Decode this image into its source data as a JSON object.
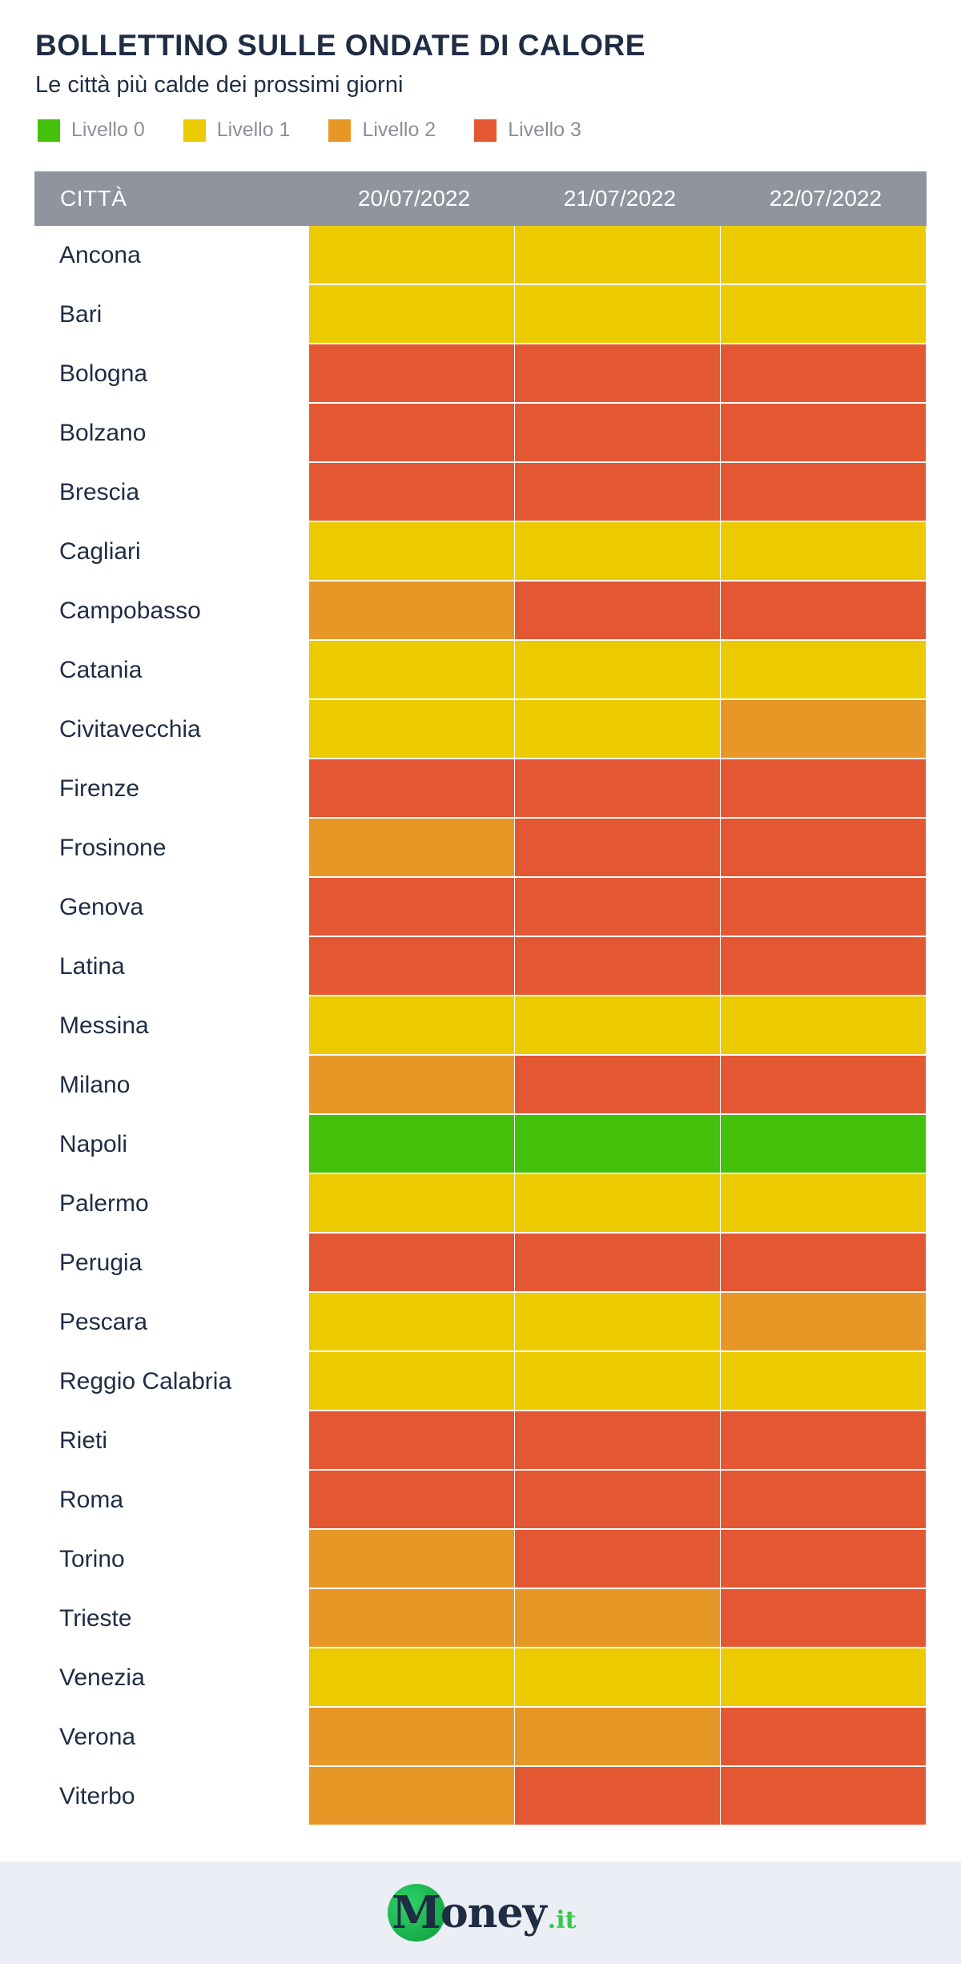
{
  "title": "BOLLETTINO SULLE ONDATE DI CALORE",
  "subtitle": "Le città più calde dei prossimi giorni",
  "legend": [
    {
      "label": "Livello 0",
      "color": "#44c10a"
    },
    {
      "label": "Livello 1",
      "color": "#ebcb00"
    },
    {
      "label": "Livello 2",
      "color": "#e79726"
    },
    {
      "label": "Livello 3",
      "color": "#e45733"
    }
  ],
  "logo": {
    "initial": "M",
    "word": "oney",
    "suffix": ".it"
  },
  "chart_data": {
    "type": "heatmap",
    "title": "BOLLETTINO SULLE ONDATE DI CALORE",
    "subtitle": "Le città più calde dei prossimi giorni",
    "row_header": "CITTÀ",
    "columns": [
      "20/07/2022",
      "21/07/2022",
      "22/07/2022"
    ],
    "level_colors": {
      "0": "#44c10a",
      "1": "#ebcb00",
      "2": "#e79726",
      "3": "#e45733"
    },
    "rows": [
      {
        "city": "Ancona",
        "levels": [
          1,
          1,
          1
        ]
      },
      {
        "city": "Bari",
        "levels": [
          1,
          1,
          1
        ]
      },
      {
        "city": "Bologna",
        "levels": [
          3,
          3,
          3
        ]
      },
      {
        "city": "Bolzano",
        "levels": [
          3,
          3,
          3
        ]
      },
      {
        "city": "Brescia",
        "levels": [
          3,
          3,
          3
        ]
      },
      {
        "city": "Cagliari",
        "levels": [
          1,
          1,
          1
        ]
      },
      {
        "city": "Campobasso",
        "levels": [
          2,
          3,
          3
        ]
      },
      {
        "city": "Catania",
        "levels": [
          1,
          1,
          1
        ]
      },
      {
        "city": "Civitavecchia",
        "levels": [
          1,
          1,
          2
        ]
      },
      {
        "city": "Firenze",
        "levels": [
          3,
          3,
          3
        ]
      },
      {
        "city": "Frosinone",
        "levels": [
          2,
          3,
          3
        ]
      },
      {
        "city": "Genova",
        "levels": [
          3,
          3,
          3
        ]
      },
      {
        "city": "Latina",
        "levels": [
          3,
          3,
          3
        ]
      },
      {
        "city": "Messina",
        "levels": [
          1,
          1,
          1
        ]
      },
      {
        "city": "Milano",
        "levels": [
          2,
          3,
          3
        ]
      },
      {
        "city": "Napoli",
        "levels": [
          0,
          0,
          0
        ]
      },
      {
        "city": "Palermo",
        "levels": [
          1,
          1,
          1
        ]
      },
      {
        "city": "Perugia",
        "levels": [
          3,
          3,
          3
        ]
      },
      {
        "city": "Pescara",
        "levels": [
          1,
          1,
          2
        ]
      },
      {
        "city": "Reggio Calabria",
        "levels": [
          1,
          1,
          1
        ]
      },
      {
        "city": "Rieti",
        "levels": [
          3,
          3,
          3
        ]
      },
      {
        "city": "Roma",
        "levels": [
          3,
          3,
          3
        ]
      },
      {
        "city": "Torino",
        "levels": [
          2,
          3,
          3
        ]
      },
      {
        "city": "Trieste",
        "levels": [
          2,
          2,
          3
        ]
      },
      {
        "city": "Venezia",
        "levels": [
          1,
          1,
          1
        ]
      },
      {
        "city": "Verona",
        "levels": [
          2,
          2,
          3
        ]
      },
      {
        "city": "Viterbo",
        "levels": [
          2,
          3,
          3
        ]
      }
    ]
  }
}
